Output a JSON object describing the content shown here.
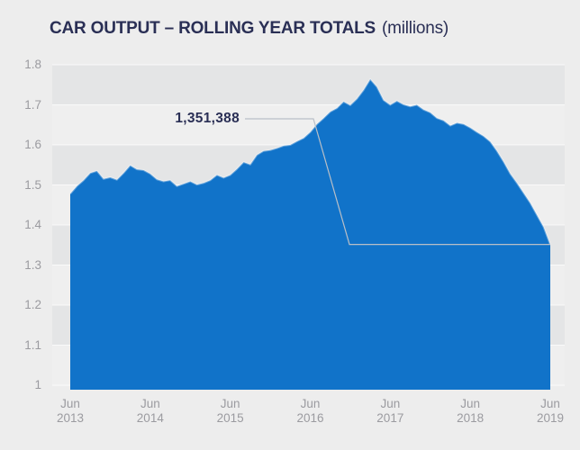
{
  "header": {
    "title": "CAR OUTPUT – ROLLING YEAR TOTALS",
    "subtitle": "(millions)"
  },
  "annotation": {
    "label": "1,351,388"
  },
  "colors": {
    "area": "#1173C9",
    "background": "#EDEDED",
    "band_dark": "#E4E5E6",
    "band_light": "#EFEFEF",
    "gridline": "#FFFFFF",
    "title_text": "#2A2F55",
    "axis_text": "#9B9BA0",
    "callout_line": "#B9BFC7"
  },
  "chart_data": {
    "type": "area",
    "title": "CAR OUTPUT – ROLLING YEAR TOTALS",
    "title_unit": "(millions)",
    "interval": "monthly",
    "x_range": [
      "Jun 2013",
      "Jun 2019"
    ],
    "x_tick_labels": [
      {
        "month": "Jun",
        "year": "2013"
      },
      {
        "month": "Jun",
        "year": "2014"
      },
      {
        "month": "Jun",
        "year": "2015"
      },
      {
        "month": "Jun",
        "year": "2016"
      },
      {
        "month": "Jun",
        "year": "2017"
      },
      {
        "month": "Jun",
        "year": "2018"
      },
      {
        "month": "Jun",
        "year": "2019"
      }
    ],
    "y_tick_labels": [
      "1.8",
      "1.7",
      "1.6",
      "1.5",
      "1.4",
      "1.3",
      "1.2",
      "1.1",
      "1"
    ],
    "ylim": [
      1.0,
      1.8
    ],
    "grid": "horizontal",
    "legend": false,
    "series": [
      {
        "name": "Car output rolling year total (millions)",
        "values": [
          1.478,
          1.497,
          1.512,
          1.53,
          1.535,
          1.515,
          1.519,
          1.513,
          1.53,
          1.549,
          1.539,
          1.537,
          1.528,
          1.514,
          1.509,
          1.512,
          1.497,
          1.503,
          1.509,
          1.501,
          1.505,
          1.512,
          1.525,
          1.518,
          1.525,
          1.54,
          1.557,
          1.551,
          1.575,
          1.585,
          1.587,
          1.592,
          1.598,
          1.6,
          1.609,
          1.617,
          1.632,
          1.652,
          1.667,
          1.683,
          1.692,
          1.708,
          1.699,
          1.715,
          1.737,
          1.764,
          1.745,
          1.712,
          1.7,
          1.71,
          1.701,
          1.696,
          1.7,
          1.688,
          1.681,
          1.667,
          1.661,
          1.648,
          1.655,
          1.652,
          1.643,
          1.632,
          1.622,
          1.608,
          1.585,
          1.558,
          1.528,
          1.505,
          1.48,
          1.455,
          1.425,
          1.395,
          1.351
        ]
      }
    ],
    "annotation": {
      "text": "1,351,388",
      "value": 1351388,
      "points_to": "Jun 2019"
    }
  }
}
